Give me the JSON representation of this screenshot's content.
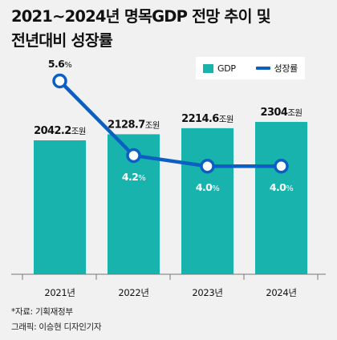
{
  "title_lines": [
    "2021~2024년 명목GDP 전망 추이 및",
    "전년대비 성장률"
  ],
  "legend": {
    "gdp": "GDP",
    "growth": "성장률"
  },
  "colors": {
    "bar": "#19b3ad",
    "line": "#0c5fc2",
    "background": "#f1f1f1"
  },
  "chart_data": {
    "type": "bar",
    "categories": [
      "2021년",
      "2022년",
      "2023년",
      "2024년"
    ],
    "series": [
      {
        "name": "GDP",
        "type": "bar",
        "values": [
          2042.2,
          2128.7,
          2214.6,
          2304
        ],
        "labels": [
          "2042.2",
          "2128.7",
          "2214.6",
          "2304"
        ],
        "unit": "조원"
      },
      {
        "name": "성장률",
        "type": "line",
        "values": [
          5.6,
          4.2,
          4.0,
          4.0
        ],
        "labels": [
          "5.6",
          "4.2",
          "4.0",
          "4.0"
        ],
        "unit": "%"
      }
    ],
    "grid": false,
    "legend_position": "top-right"
  },
  "footer": {
    "source": "*자료: 기획재정부",
    "credit": "그래픽: 이승현 디자인기자"
  }
}
